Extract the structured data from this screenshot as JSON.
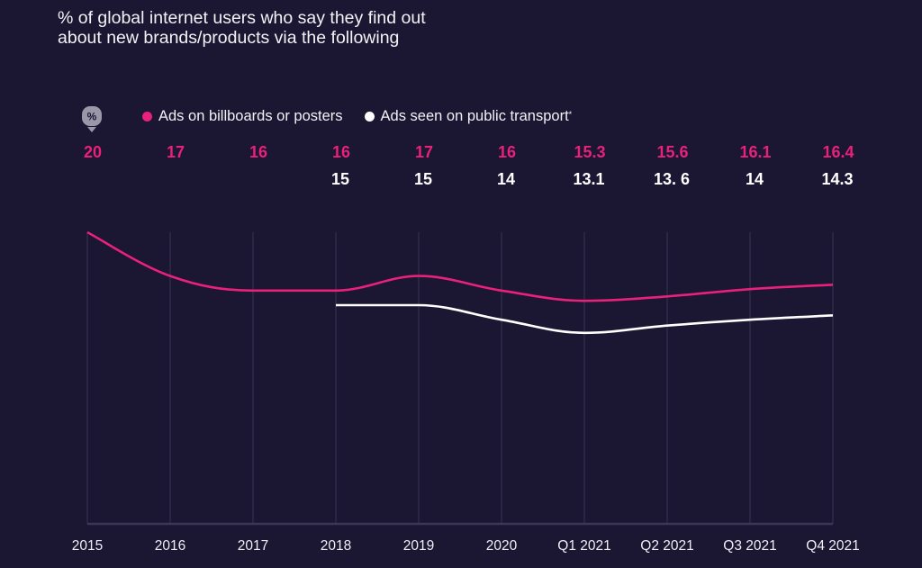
{
  "title_lines": [
    "% of global internet users who say they find out",
    "about new brands/products via the following"
  ],
  "unit_icon": {
    "name": "percent-marker-icon",
    "glyph": "%"
  },
  "colors": {
    "background": "#1b1632",
    "series_pink": "#e8217a",
    "series_white": "#ffffff",
    "gridline": "#34304d",
    "icon_bg": "#9a97a8"
  },
  "chart_data": {
    "type": "line",
    "title": "% of global internet users who say they find out about new brands/products via the following",
    "xlabel": "",
    "ylabel": "%",
    "ylim": [
      0,
      20
    ],
    "grid": "vertical",
    "legend_position": "top-left",
    "x": [
      "2015",
      "2016",
      "2017",
      "2018",
      "2019",
      "2020",
      "Q1 2021",
      "Q2 2021",
      "Q3 2021",
      "Q4 2021"
    ],
    "series": [
      {
        "name": "Ads on billboards or posters",
        "legend_suffix": "",
        "color": "#e8217a",
        "values": [
          20,
          17,
          16,
          16,
          17,
          16,
          15.3,
          15.6,
          16.1,
          16.4
        ],
        "labels": [
          "20",
          "17",
          "16",
          "16",
          "17",
          "16",
          "15.3",
          "15.6",
          "16.1",
          "16.4"
        ]
      },
      {
        "name": "Ads seen on public transport",
        "legend_suffix": "*",
        "color": "#ffffff",
        "values": [
          null,
          null,
          null,
          15,
          15,
          14,
          13.1,
          13.6,
          14,
          14.3
        ],
        "labels": [
          "",
          "",
          "",
          "15",
          "15",
          "14",
          "13.1",
          "13. 6",
          "14",
          "14.3"
        ]
      }
    ]
  }
}
